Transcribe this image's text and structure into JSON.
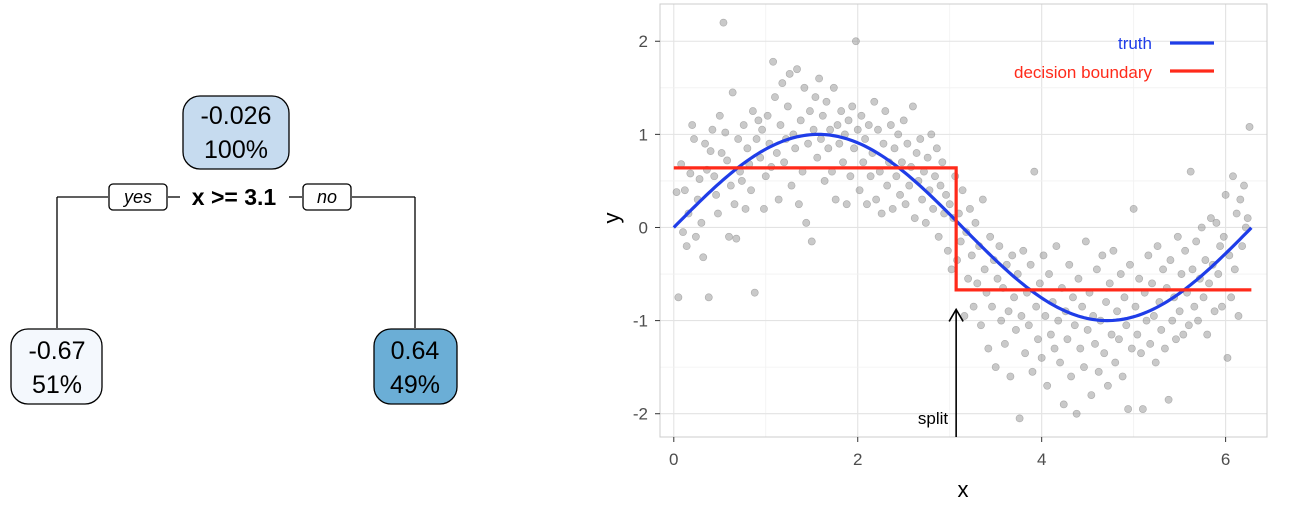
{
  "tree": {
    "root": {
      "value": "-0.026",
      "percent": "100%"
    },
    "split_rule": "x >= 3.1",
    "yes_label": "yes",
    "no_label": "no",
    "left_leaf": {
      "value": "-0.67",
      "percent": "51%"
    },
    "right_leaf": {
      "value": "0.64",
      "percent": "49%"
    },
    "colors": {
      "root": "#c6dbef",
      "left": "#f4f8fd",
      "right": "#6baed6"
    }
  },
  "chart_data": {
    "type": "scatter",
    "xlabel": "x",
    "ylabel": "y",
    "xlim": [
      -0.15,
      6.45
    ],
    "ylim": [
      -2.25,
      2.4
    ],
    "xticks": [
      0,
      2,
      4,
      6
    ],
    "yticks": [
      -2,
      -1,
      0,
      1,
      2
    ],
    "grid": true,
    "legend_position": "top-right",
    "series": [
      {
        "name": "truth",
        "kind": "line",
        "color": "#1f3de8",
        "function": "sin(x)",
        "x_range": [
          0,
          6.28
        ]
      },
      {
        "name": "decision boundary",
        "kind": "step",
        "color": "#ff2a1a",
        "segments": [
          {
            "x": [
              0,
              3.07
            ],
            "y": 0.64
          },
          {
            "x": [
              3.07,
              6.28
            ],
            "y": -0.67
          }
        ]
      }
    ],
    "points_color": "#7f7f7f",
    "points": [
      [
        0.03,
        0.38
      ],
      [
        0.05,
        -0.75
      ],
      [
        0.08,
        0.68
      ],
      [
        0.1,
        -0.05
      ],
      [
        0.12,
        0.4
      ],
      [
        0.14,
        -0.2
      ],
      [
        0.16,
        0.15
      ],
      [
        0.18,
        0.58
      ],
      [
        0.2,
        1.1
      ],
      [
        0.22,
        0.95
      ],
      [
        0.24,
        -0.1
      ],
      [
        0.26,
        0.3
      ],
      [
        0.28,
        0.52
      ],
      [
        0.3,
        0.05
      ],
      [
        0.32,
        -0.32
      ],
      [
        0.34,
        0.9
      ],
      [
        0.36,
        0.62
      ],
      [
        0.38,
        -0.75
      ],
      [
        0.4,
        0.82
      ],
      [
        0.42,
        1.05
      ],
      [
        0.44,
        0.55
      ],
      [
        0.46,
        0.35
      ],
      [
        0.48,
        0.15
      ],
      [
        0.5,
        1.2
      ],
      [
        0.52,
        0.8
      ],
      [
        0.54,
        2.2
      ],
      [
        0.56,
        1.02
      ],
      [
        0.58,
        0.72
      ],
      [
        0.6,
        -0.1
      ],
      [
        0.62,
        0.45
      ],
      [
        0.64,
        1.45
      ],
      [
        0.66,
        0.25
      ],
      [
        0.68,
        -0.12
      ],
      [
        0.7,
        0.95
      ],
      [
        0.72,
        0.6
      ],
      [
        0.74,
        0.5
      ],
      [
        0.76,
        1.1
      ],
      [
        0.78,
        0.2
      ],
      [
        0.8,
        0.85
      ],
      [
        0.82,
        0.68
      ],
      [
        0.84,
        0.4
      ],
      [
        0.86,
        1.25
      ],
      [
        0.88,
        -0.7
      ],
      [
        0.9,
        0.95
      ],
      [
        0.92,
        1.15
      ],
      [
        0.94,
        0.75
      ],
      [
        0.96,
        1.05
      ],
      [
        0.98,
        0.2
      ],
      [
        1.0,
        0.55
      ],
      [
        1.02,
        1.2
      ],
      [
        1.04,
        0.9
      ],
      [
        1.06,
        0.65
      ],
      [
        1.08,
        1.78
      ],
      [
        1.1,
        1.4
      ],
      [
        1.12,
        0.8
      ],
      [
        1.14,
        0.3
      ],
      [
        1.16,
        1.1
      ],
      [
        1.18,
        1.55
      ],
      [
        1.2,
        0.7
      ],
      [
        1.22,
        0.95
      ],
      [
        1.24,
        1.3
      ],
      [
        1.26,
        1.65
      ],
      [
        1.28,
        0.45
      ],
      [
        1.3,
        1.0
      ],
      [
        1.32,
        0.85
      ],
      [
        1.34,
        1.7
      ],
      [
        1.36,
        0.25
      ],
      [
        1.38,
        1.15
      ],
      [
        1.4,
        0.6
      ],
      [
        1.42,
        1.5
      ],
      [
        1.44,
        0.05
      ],
      [
        1.46,
        0.9
      ],
      [
        1.48,
        1.25
      ],
      [
        1.5,
        -0.15
      ],
      [
        1.52,
        1.05
      ],
      [
        1.54,
        1.4
      ],
      [
        1.56,
        0.75
      ],
      [
        1.58,
        1.6
      ],
      [
        1.6,
        0.95
      ],
      [
        1.62,
        1.2
      ],
      [
        1.64,
        0.5
      ],
      [
        1.66,
        1.35
      ],
      [
        1.68,
        0.85
      ],
      [
        1.7,
        1.05
      ],
      [
        1.72,
        0.6
      ],
      [
        1.74,
        1.5
      ],
      [
        1.76,
        0.3
      ],
      [
        1.78,
        1.1
      ],
      [
        1.8,
        0.9
      ],
      [
        1.82,
        1.25
      ],
      [
        1.84,
        0.7
      ],
      [
        1.86,
        1.0
      ],
      [
        1.88,
        0.25
      ],
      [
        1.9,
        1.15
      ],
      [
        1.92,
        0.55
      ],
      [
        1.94,
        1.3
      ],
      [
        1.96,
        0.85
      ],
      [
        1.98,
        2.0
      ],
      [
        2.0,
        1.05
      ],
      [
        2.02,
        0.4
      ],
      [
        2.04,
        1.2
      ],
      [
        2.06,
        0.7
      ],
      [
        2.08,
        0.95
      ],
      [
        2.1,
        0.25
      ],
      [
        2.12,
        1.1
      ],
      [
        2.14,
        0.55
      ],
      [
        2.16,
        0.8
      ],
      [
        2.18,
        1.35
      ],
      [
        2.2,
        0.3
      ],
      [
        2.22,
        1.05
      ],
      [
        2.24,
        0.6
      ],
      [
        2.26,
        0.15
      ],
      [
        2.28,
        0.9
      ],
      [
        2.3,
        1.25
      ],
      [
        2.32,
        0.45
      ],
      [
        2.34,
        0.7
      ],
      [
        2.36,
        1.1
      ],
      [
        2.38,
        0.2
      ],
      [
        2.4,
        0.85
      ],
      [
        2.42,
        0.55
      ],
      [
        2.44,
        1.0
      ],
      [
        2.46,
        0.35
      ],
      [
        2.48,
        0.7
      ],
      [
        2.5,
        1.15
      ],
      [
        2.52,
        0.25
      ],
      [
        2.54,
        0.9
      ],
      [
        2.56,
        0.45
      ],
      [
        2.58,
        0.65
      ],
      [
        2.6,
        1.3
      ],
      [
        2.62,
        0.1
      ],
      [
        2.64,
        0.8
      ],
      [
        2.66,
        0.5
      ],
      [
        2.68,
        0.95
      ],
      [
        2.7,
        0.3
      ],
      [
        2.72,
        0.6
      ],
      [
        2.74,
        0.05
      ],
      [
        2.76,
        0.75
      ],
      [
        2.78,
        0.4
      ],
      [
        2.8,
        1.0
      ],
      [
        2.82,
        0.2
      ],
      [
        2.84,
        0.55
      ],
      [
        2.86,
        0.85
      ],
      [
        2.88,
        -0.1
      ],
      [
        2.9,
        0.45
      ],
      [
        2.92,
        0.7
      ],
      [
        2.94,
        0.15
      ],
      [
        2.96,
        0.35
      ],
      [
        2.98,
        -0.25
      ],
      [
        3.0,
        0.25
      ],
      [
        3.02,
        -0.45
      ],
      [
        3.04,
        0.1
      ],
      [
        3.06,
        0.55
      ],
      [
        3.08,
        -0.35
      ],
      [
        3.1,
        0.15
      ],
      [
        3.12,
        -0.15
      ],
      [
        3.14,
        0.4
      ],
      [
        3.16,
        -0.95
      ],
      [
        3.18,
        -0.05
      ],
      [
        3.2,
        -0.55
      ],
      [
        3.22,
        0.2
      ],
      [
        3.24,
        -0.3
      ],
      [
        3.26,
        -0.85
      ],
      [
        3.28,
        0.05
      ],
      [
        3.3,
        -0.6
      ],
      [
        3.32,
        -0.2
      ],
      [
        3.34,
        -1.05
      ],
      [
        3.36,
        0.3
      ],
      [
        3.38,
        -0.45
      ],
      [
        3.4,
        -0.7
      ],
      [
        3.42,
        -1.3
      ],
      [
        3.44,
        -0.1
      ],
      [
        3.46,
        -0.85
      ],
      [
        3.48,
        -0.35
      ],
      [
        3.5,
        -1.5
      ],
      [
        3.52,
        -0.55
      ],
      [
        3.54,
        -0.2
      ],
      [
        3.56,
        -1.0
      ],
      [
        3.58,
        -0.65
      ],
      [
        3.6,
        -1.25
      ],
      [
        3.62,
        -0.4
      ],
      [
        3.64,
        -0.9
      ],
      [
        3.66,
        -1.6
      ],
      [
        3.68,
        -0.3
      ],
      [
        3.7,
        -0.75
      ],
      [
        3.72,
        -1.1
      ],
      [
        3.74,
        -0.5
      ],
      [
        3.76,
        -2.05
      ],
      [
        3.78,
        -0.95
      ],
      [
        3.8,
        -0.25
      ],
      [
        3.82,
        -1.35
      ],
      [
        3.84,
        -0.7
      ],
      [
        3.86,
        -1.05
      ],
      [
        3.88,
        -0.4
      ],
      [
        3.9,
        -1.55
      ],
      [
        3.92,
        0.6
      ],
      [
        3.94,
        -0.85
      ],
      [
        3.96,
        -1.2
      ],
      [
        3.98,
        -0.6
      ],
      [
        4.0,
        -1.4
      ],
      [
        4.02,
        -0.3
      ],
      [
        4.04,
        -0.95
      ],
      [
        4.06,
        -1.7
      ],
      [
        4.08,
        -0.5
      ],
      [
        4.1,
        -1.15
      ],
      [
        4.12,
        -0.8
      ],
      [
        4.14,
        -1.3
      ],
      [
        4.16,
        -0.2
      ],
      [
        4.18,
        -1.0
      ],
      [
        4.2,
        -1.45
      ],
      [
        4.22,
        -0.65
      ],
      [
        4.24,
        -1.9
      ],
      [
        4.26,
        -0.9
      ],
      [
        4.28,
        -1.2
      ],
      [
        4.3,
        -0.4
      ],
      [
        4.32,
        -1.6
      ],
      [
        4.34,
        -0.75
      ],
      [
        4.36,
        -1.05
      ],
      [
        4.38,
        -2.0
      ],
      [
        4.4,
        -0.55
      ],
      [
        4.42,
        -1.3
      ],
      [
        4.44,
        -0.85
      ],
      [
        4.46,
        -1.5
      ],
      [
        4.48,
        -0.15
      ],
      [
        4.5,
        -1.1
      ],
      [
        4.52,
        -0.7
      ],
      [
        4.54,
        -1.8
      ],
      [
        4.56,
        -0.95
      ],
      [
        4.58,
        -1.25
      ],
      [
        4.6,
        -0.45
      ],
      [
        4.62,
        -1.55
      ],
      [
        4.64,
        -1.0
      ],
      [
        4.66,
        -0.3
      ],
      [
        4.68,
        -1.35
      ],
      [
        4.7,
        -0.8
      ],
      [
        4.72,
        -1.7
      ],
      [
        4.74,
        -0.6
      ],
      [
        4.76,
        -1.15
      ],
      [
        4.78,
        -0.25
      ],
      [
        4.8,
        -1.45
      ],
      [
        4.82,
        -0.9
      ],
      [
        4.84,
        -1.2
      ],
      [
        4.86,
        -0.5
      ],
      [
        4.88,
        -1.6
      ],
      [
        4.9,
        -0.75
      ],
      [
        4.92,
        -1.05
      ],
      [
        4.94,
        -1.95
      ],
      [
        4.96,
        -0.4
      ],
      [
        4.98,
        -1.3
      ],
      [
        5.0,
        0.2
      ],
      [
        5.02,
        -0.85
      ],
      [
        5.04,
        -1.15
      ],
      [
        5.06,
        -0.55
      ],
      [
        5.08,
        -1.35
      ],
      [
        5.1,
        -1.95
      ],
      [
        5.12,
        -0.7
      ],
      [
        5.14,
        -1.0
      ],
      [
        5.16,
        -0.3
      ],
      [
        5.18,
        -1.25
      ],
      [
        5.2,
        -0.6
      ],
      [
        5.22,
        -0.95
      ],
      [
        5.24,
        -1.45
      ],
      [
        5.26,
        -0.2
      ],
      [
        5.28,
        -0.8
      ],
      [
        5.3,
        -1.1
      ],
      [
        5.32,
        -0.45
      ],
      [
        5.34,
        -1.3
      ],
      [
        5.36,
        -0.65
      ],
      [
        5.38,
        -1.85
      ],
      [
        5.4,
        -0.35
      ],
      [
        5.42,
        -1.0
      ],
      [
        5.44,
        -0.75
      ],
      [
        5.46,
        -1.2
      ],
      [
        5.48,
        -0.1
      ],
      [
        5.5,
        -0.9
      ],
      [
        5.52,
        -0.5
      ],
      [
        5.54,
        -1.15
      ],
      [
        5.56,
        -0.25
      ],
      [
        5.58,
        -0.7
      ],
      [
        5.6,
        -1.05
      ],
      [
        5.62,
        0.6
      ],
      [
        5.64,
        -0.45
      ],
      [
        5.66,
        -0.85
      ],
      [
        5.68,
        -0.15
      ],
      [
        5.7,
        -1.0
      ],
      [
        5.72,
        -0.55
      ],
      [
        5.74,
        0.0
      ],
      [
        5.76,
        -0.75
      ],
      [
        5.78,
        -0.35
      ],
      [
        5.8,
        -1.15
      ],
      [
        5.82,
        -0.6
      ],
      [
        5.84,
        0.1
      ],
      [
        5.86,
        -0.4
      ],
      [
        5.88,
        -0.9
      ],
      [
        5.9,
        0.05
      ],
      [
        5.92,
        -0.5
      ],
      [
        5.94,
        -0.2
      ],
      [
        5.96,
        -0.85
      ],
      [
        5.98,
        -0.1
      ],
      [
        6.0,
        0.35
      ],
      [
        6.02,
        -1.4
      ],
      [
        6.04,
        -0.3
      ],
      [
        6.06,
        -0.75
      ],
      [
        6.08,
        0.55
      ],
      [
        6.1,
        -0.45
      ],
      [
        6.12,
        0.15
      ],
      [
        6.14,
        -0.95
      ],
      [
        6.16,
        0.3
      ],
      [
        6.18,
        -0.2
      ],
      [
        6.2,
        0.45
      ],
      [
        6.22,
        0.0
      ],
      [
        6.24,
        0.1
      ],
      [
        6.26,
        1.08
      ]
    ],
    "annotation": {
      "text": "split",
      "x": 3.07,
      "y_from": -2.25,
      "y_to": -0.88
    }
  }
}
